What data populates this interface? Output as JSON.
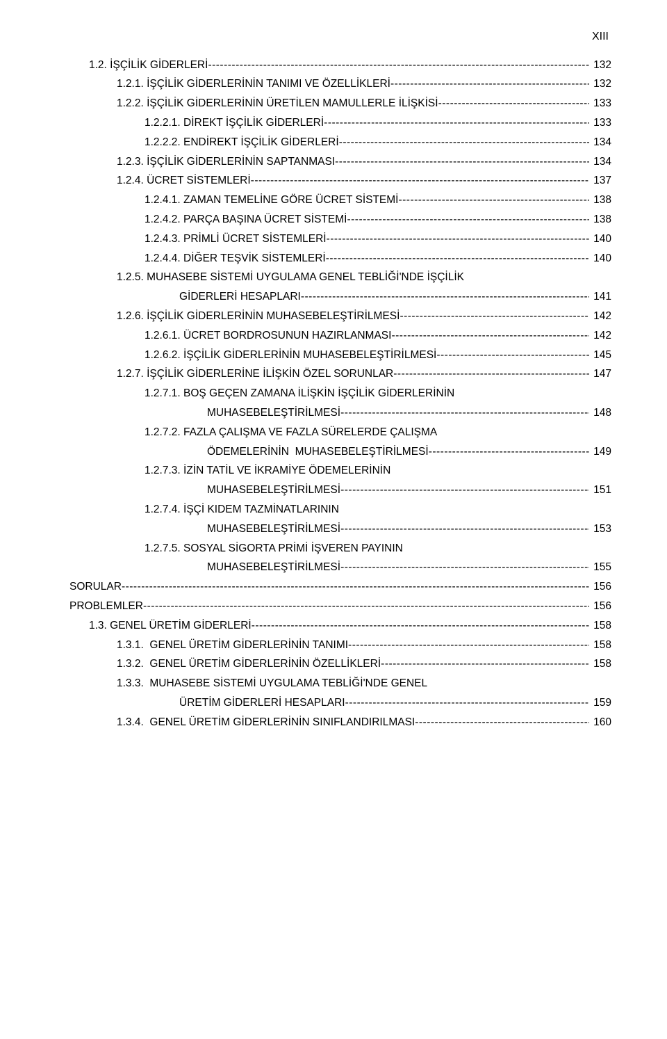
{
  "page_header": "XIII",
  "entries": [
    {
      "indent": "ind-1",
      "label": "1.2. İŞÇİLİK GİDERLERİ",
      "page": "132"
    },
    {
      "indent": "ind-2",
      "label": "1.2.1. İŞÇİLİK GİDERLERİNİN TANIMI VE ÖZELLİKLERİ",
      "page": "132"
    },
    {
      "indent": "ind-2",
      "label": "1.2.2. İŞÇİLİK GİDERLERİNİN ÜRETİLEN MAMULLERLE İLİŞKİSİ",
      "page": "133"
    },
    {
      "indent": "ind-3",
      "label": "1.2.2.1. DİREKT İŞÇİLİK GİDERLERİ",
      "page": "133"
    },
    {
      "indent": "ind-3",
      "label": "1.2.2.2. ENDİREKT İŞÇİLİK GİDERLERİ",
      "page": "134"
    },
    {
      "indent": "ind-2",
      "label": "1.2.3. İŞÇİLİK GİDERLERİNİN SAPTANMASI",
      "page": "134"
    },
    {
      "indent": "ind-2",
      "label": "1.2.4. ÜCRET SİSTEMLERİ",
      "page": "137"
    },
    {
      "indent": "ind-3",
      "label": "1.2.4.1. ZAMAN TEMELİNE GÖRE ÜCRET SİSTEMİ",
      "page": "138"
    },
    {
      "indent": "ind-3",
      "label": "1.2.4.2. PARÇA BAŞINA ÜCRET SİSTEMİ",
      "page": "138"
    },
    {
      "indent": "ind-3",
      "label": "1.2.4.3. PRİMLİ ÜCRET SİSTEMLERİ",
      "page": "140"
    },
    {
      "indent": "ind-3",
      "label": "1.2.4.4. DİĞER TEŞVİK SİSTEMLERİ",
      "page": "140"
    },
    {
      "indent": "ind-2",
      "label": "1.2.5. MUHASEBE SİSTEMİ UYGULAMA GENEL TEBLİĞİ'NDE İŞÇİLİK",
      "nowrap": true
    },
    {
      "indent": "cont-3",
      "label": "GİDERLERİ HESAPLARI",
      "page": "141"
    },
    {
      "indent": "ind-2",
      "label": "1.2.6. İŞÇİLİK GİDERLERİNİN MUHASEBELEŞTİRİLMESİ",
      "page": "142"
    },
    {
      "indent": "ind-3",
      "label": "1.2.6.1. ÜCRET BORDROSUNUN HAZIRLANMASI",
      "page": "142"
    },
    {
      "indent": "ind-3",
      "label": "1.2.6.2. İŞÇİLİK GİDERLERİNİN MUHASEBELEŞTİRİLMESİ",
      "page": "145"
    },
    {
      "indent": "ind-2",
      "label": "1.2.7. İŞÇİLİK GİDERLERİNE İLİŞKİN ÖZEL SORUNLAR",
      "page": "147"
    },
    {
      "indent": "ind-3",
      "label": "1.2.7.1. BOŞ GEÇEN ZAMANA İLİŞKİN İŞÇİLİK GİDERLERİNİN",
      "nowrap": true
    },
    {
      "indent": "cont-4",
      "label": "MUHASEBELEŞTİRİLMESİ",
      "page": "148"
    },
    {
      "indent": "ind-3",
      "label": "1.2.7.2. FAZLA ÇALIŞMA VE FAZLA SÜRELERDE ÇALIŞMA",
      "nowrap": true
    },
    {
      "indent": "cont-4",
      "label": "ÖDEMELERİNİN  MUHASEBELEŞTİRİLMESİ",
      "page": "149"
    },
    {
      "indent": "ind-3",
      "label": "1.2.7.3. İZİN TATİL VE İKRAMİYE ÖDEMELERİNİN",
      "nowrap": true
    },
    {
      "indent": "cont-4",
      "label": "MUHASEBELEŞTİRİLMESİ",
      "page": "151"
    },
    {
      "indent": "ind-3",
      "label": "1.2.7.4. İŞÇİ KIDEM TAZMİNATLARININ",
      "nowrap": true
    },
    {
      "indent": "cont-4",
      "label": "MUHASEBELEŞTİRİLMESİ",
      "page": "153"
    },
    {
      "indent": "ind-3",
      "label": "1.2.7.5. SOSYAL SİGORTA PRİMİ İŞVEREN PAYININ",
      "nowrap": true
    },
    {
      "indent": "cont-4",
      "label": "MUHASEBELEŞTİRİLMESİ",
      "page": "155"
    },
    {
      "indent": "ind-0",
      "label": "SORULAR",
      "page": "156"
    },
    {
      "indent": "ind-0",
      "label": "PROBLEMLER",
      "page": "156"
    },
    {
      "indent": "ind-1",
      "label": "1.3. GENEL ÜRETİM GİDERLERİ",
      "page": "158"
    },
    {
      "indent": "ind-2",
      "label": "1.3.1.  GENEL ÜRETİM GİDERLERİNİN TANIMI",
      "page": "158"
    },
    {
      "indent": "ind-2",
      "label": "1.3.2.  GENEL ÜRETİM GİDERLERİNİN ÖZELLİKLERİ",
      "page": "158"
    },
    {
      "indent": "ind-2",
      "label": "1.3.3.  MUHASEBE SİSTEMİ UYGULAMA TEBLİĞİ'NDE GENEL",
      "nowrap": true
    },
    {
      "indent": "cont-3",
      "label": "ÜRETİM GİDERLERİ HESAPLARI",
      "page": "159"
    },
    {
      "indent": "ind-2",
      "label": "1.3.4.  GENEL ÜRETİM GİDERLERİNİN SINIFLANDIRILMASI",
      "page": "160"
    }
  ]
}
